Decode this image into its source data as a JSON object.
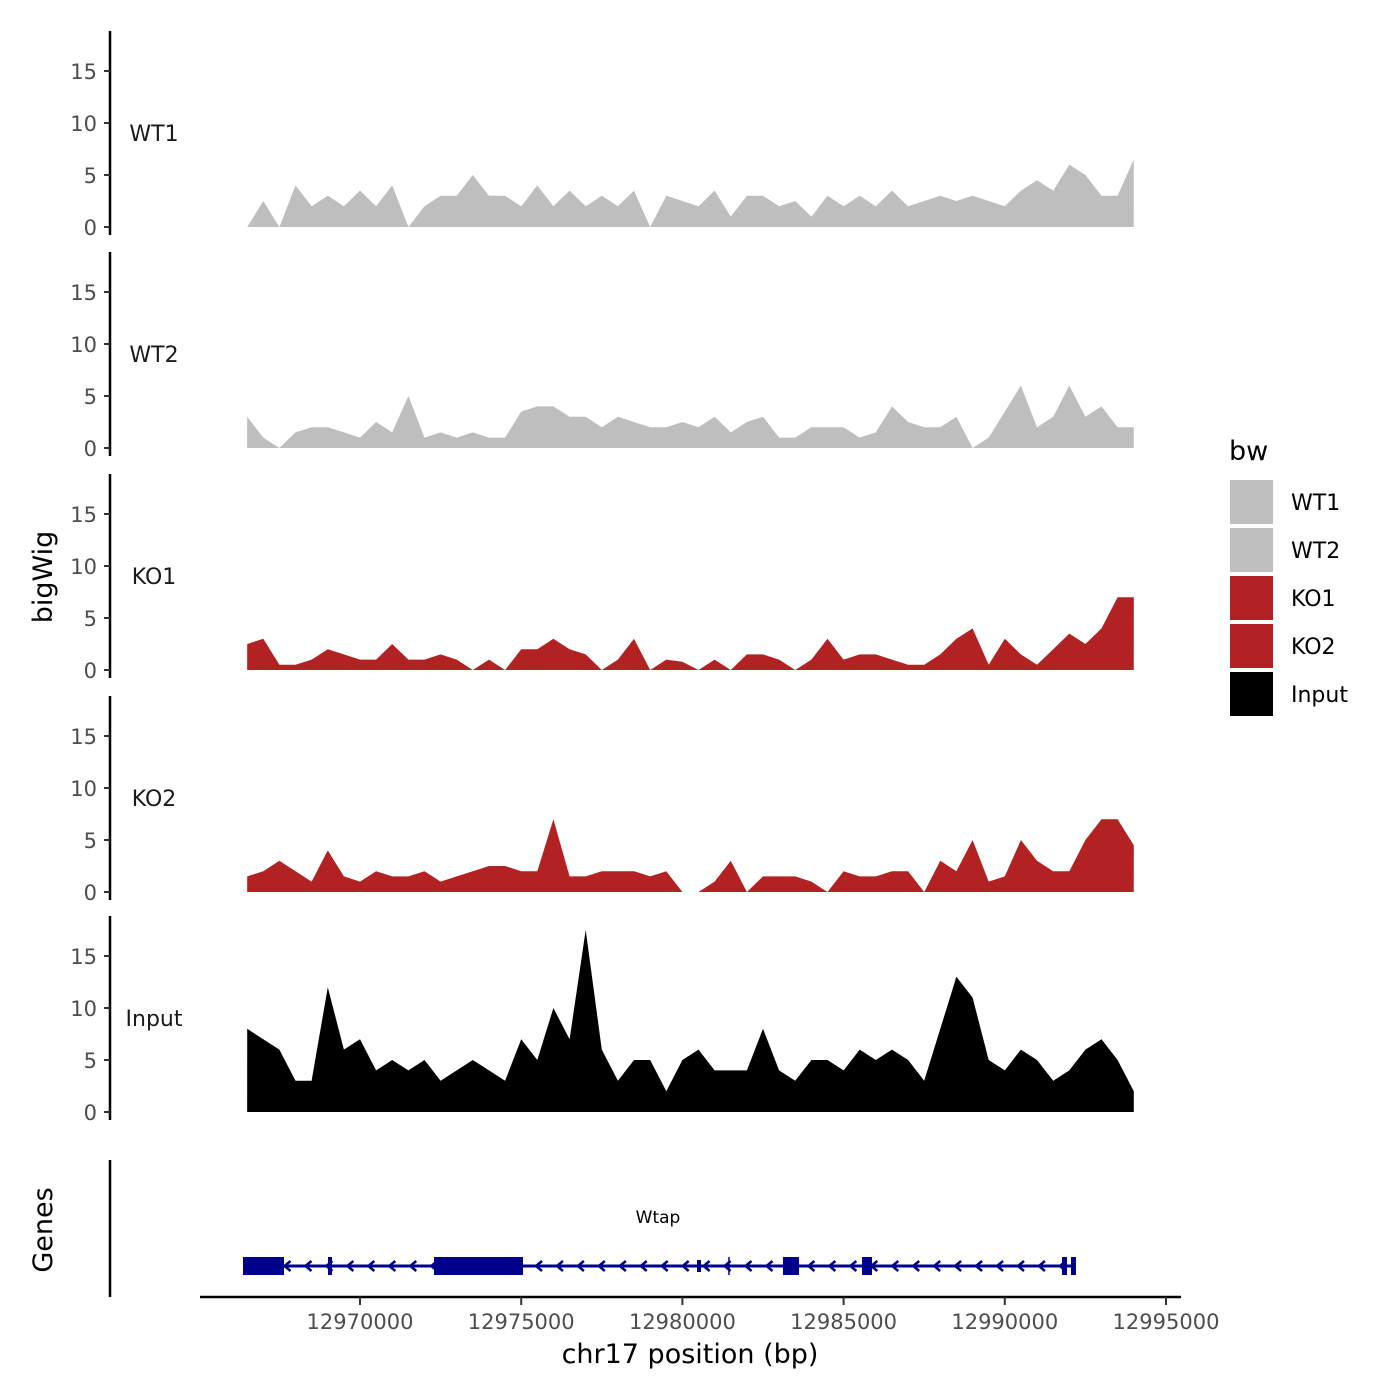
{
  "chart_data": {
    "type": "area",
    "title": "",
    "xlabel": "chr17 position (bp)",
    "ylabel": "bigWig",
    "gene_track_label": "Genes",
    "xlim": [
      12965000,
      12996000
    ],
    "ylim": [
      0,
      19
    ],
    "x_ticks": [
      12970000,
      12975000,
      12980000,
      12985000,
      12990000,
      12995000
    ],
    "x_tick_labels": [
      "12970000",
      "12975000",
      "12980000",
      "12985000",
      "12990000",
      "12995000"
    ],
    "y_ticks": [
      0,
      5,
      10,
      15
    ],
    "y_tick_labels": [
      "0",
      "5",
      "10",
      "15"
    ],
    "x_start": 12966500,
    "x_step": 500,
    "series": [
      {
        "name": "WT1",
        "color": "#bebebe",
        "values": [
          0,
          2.5,
          0,
          4,
          2,
          3,
          2,
          3.5,
          2,
          4,
          0,
          2,
          3,
          3,
          5,
          3,
          3,
          2,
          4,
          2,
          3.5,
          2,
          3,
          2,
          3.5,
          0,
          3,
          2.5,
          2,
          3.5,
          1,
          3,
          3,
          2,
          2.5,
          1,
          3,
          2,
          3,
          2,
          3.5,
          2,
          2.5,
          3,
          2.5,
          3,
          2.5,
          2,
          3.5,
          4.5,
          3.5,
          6,
          5,
          3,
          3,
          6.5
        ]
      },
      {
        "name": "WT2",
        "color": "#bebebe",
        "values": [
          3,
          1,
          0,
          1.5,
          2,
          2,
          1.5,
          1,
          2.5,
          1.5,
          5,
          1,
          1.5,
          1,
          1.5,
          1,
          1,
          3.5,
          4,
          4,
          3,
          3,
          2,
          3,
          2.5,
          2,
          2,
          2.5,
          2,
          3,
          1.5,
          2.5,
          3,
          1,
          1,
          2,
          2,
          2,
          1,
          1.5,
          4,
          2.5,
          2,
          2,
          3,
          0,
          1,
          3.5,
          6,
          2,
          3,
          6,
          3,
          4,
          2,
          2
        ]
      },
      {
        "name": "KO1",
        "color": "#b22222",
        "values": [
          2.5,
          3,
          0.5,
          0.5,
          1,
          2,
          1.5,
          1,
          1,
          2.5,
          1,
          1,
          1.5,
          1,
          0,
          1,
          0,
          2,
          2,
          3,
          2,
          1.5,
          0,
          1,
          3,
          0,
          1,
          0.8,
          0,
          1,
          0,
          1.5,
          1.5,
          1,
          0,
          1,
          3,
          1,
          1.5,
          1.5,
          1,
          0.5,
          0.5,
          1.5,
          3,
          4,
          0.5,
          3,
          1.5,
          0.5,
          2,
          3.5,
          2.5,
          4,
          7,
          7
        ]
      },
      {
        "name": "KO2",
        "color": "#b22222",
        "values": [
          1.5,
          2,
          3,
          2,
          1,
          4,
          1.5,
          1,
          2,
          1.5,
          1.5,
          2,
          1,
          1.5,
          2,
          2.5,
          2.5,
          2,
          2,
          7,
          1.5,
          1.5,
          2,
          2,
          2,
          1.5,
          2,
          0,
          0,
          1,
          3,
          0,
          1.5,
          1.5,
          1.5,
          1,
          0,
          2,
          1.5,
          1.5,
          2,
          2,
          0,
          3,
          2,
          5,
          1,
          1.5,
          5,
          3,
          2,
          2,
          5,
          7,
          7,
          4.5
        ]
      },
      {
        "name": "Input",
        "color": "#000000",
        "values": [
          8,
          7,
          6,
          3,
          3,
          12,
          6,
          7,
          4,
          5,
          4,
          5,
          3,
          4,
          5,
          4,
          3,
          7,
          5,
          10,
          7,
          17.5,
          6,
          3,
          5,
          5,
          2,
          5,
          6,
          4,
          4,
          4,
          8,
          4,
          3,
          5,
          5,
          4,
          6,
          5,
          6,
          5,
          3,
          8,
          13,
          11,
          5,
          4,
          6,
          5,
          3,
          4,
          6,
          7,
          5,
          2
        ]
      }
    ],
    "legend": {
      "title": "bw",
      "placement": "right",
      "entries": [
        "WT1",
        "WT2",
        "KO1",
        "KO2",
        "Input"
      ]
    },
    "gene": {
      "name": "Wtap",
      "strand": "-",
      "color": "#00008b",
      "start": 12966371,
      "end": 12992208,
      "exons": [
        [
          12966371,
          12967643
        ],
        [
          12969007,
          12969132
        ],
        [
          12972295,
          12975056
        ],
        [
          12980453,
          12980577
        ],
        [
          12983120,
          12983617
        ],
        [
          12985571,
          12985881
        ],
        [
          12991774,
          12991929
        ],
        [
          12992053,
          12992208
        ]
      ],
      "marks": [
        12981445
      ]
    }
  }
}
